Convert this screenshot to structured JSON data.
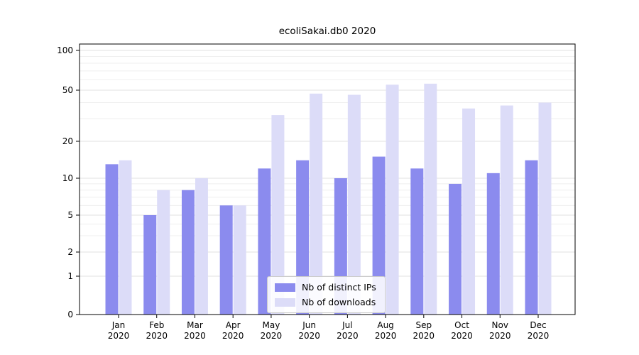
{
  "title": "ecoliSakai.db0 2020",
  "chart_data": {
    "type": "bar",
    "title": "ecoliSakai.db0 2020",
    "categories": [
      "Jan",
      "Feb",
      "Mar",
      "Apr",
      "May",
      "Jun",
      "Jul",
      "Aug",
      "Sep",
      "Oct",
      "Nov",
      "Dec"
    ],
    "year_label": "2020",
    "series": [
      {
        "name": "Nb of distinct IPs",
        "color": "#8b8bee",
        "values": [
          13,
          5,
          8,
          6,
          12,
          14,
          10,
          15,
          12,
          9,
          11,
          14
        ]
      },
      {
        "name": "Nb of downloads",
        "color": "#dcdcf8",
        "values": [
          14,
          8,
          10,
          6,
          32,
          47,
          46,
          55,
          56,
          36,
          38,
          40
        ]
      }
    ],
    "xlabel": "",
    "ylabel": "",
    "yscale": "symlog",
    "ylim": [
      0,
      100
    ],
    "yticks": [
      0,
      1,
      2,
      5,
      10,
      20,
      50,
      100
    ],
    "yticks_minor": [
      3,
      4,
      6,
      7,
      8,
      9,
      30,
      40,
      60,
      70,
      80,
      90
    ],
    "grid": true,
    "legend_position": "lower center",
    "colors": {
      "bar_dark": "#8b8bee",
      "bar_light": "#dcdcf8",
      "grid_major": "#e2e2e2",
      "grid_minor": "#efefef",
      "axis": "#000000",
      "text": "#000000",
      "legend_border": "#cccccc"
    }
  }
}
